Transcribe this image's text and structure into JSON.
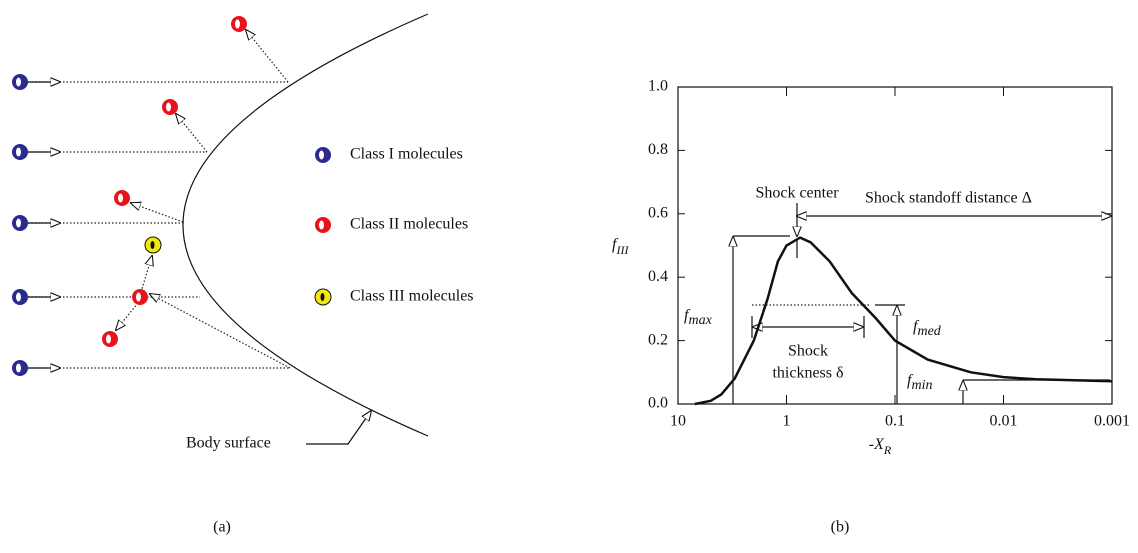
{
  "panel_a": {
    "legend": [
      "Class I molecules",
      "Class II molecules",
      "Class III molecules"
    ],
    "surface_label": "Body surface",
    "caption": "(a)"
  },
  "panel_b": {
    "caption": "(b)"
  },
  "chart_data": {
    "type": "line",
    "x": [
      7,
      5,
      4,
      3,
      2,
      1.5,
      1.2,
      1,
      0.75,
      0.6,
      0.4,
      0.25,
      0.15,
      0.1,
      0.05,
      0.02,
      0.01,
      0.005,
      0.001
    ],
    "values": [
      0,
      0.01,
      0.03,
      0.08,
      0.2,
      0.33,
      0.45,
      0.5,
      0.525,
      0.51,
      0.45,
      0.35,
      0.27,
      0.2,
      0.14,
      0.1,
      0.085,
      0.078,
      0.072
    ],
    "color": "#111111",
    "xlim": [
      10,
      0.001
    ],
    "xticks": [
      10,
      1,
      0.1,
      0.01,
      0.001
    ],
    "xscale": "log",
    "ylim": [
      0,
      1
    ],
    "yticks": [
      {
        "value": 0,
        "label": "0.0"
      },
      0.2,
      0.4,
      0.6,
      0.8,
      {
        "value": 1,
        "label": "1.0"
      }
    ],
    "ylabel": {
      "base": "f",
      "sub": "III"
    },
    "xlabel": {
      "base": "-X",
      "sub": "R"
    },
    "annotations": {
      "shock_center": "Shock center",
      "standoff": "Shock standoff distance Δ",
      "fmax": {
        "base": "f",
        "sub": "max"
      },
      "fmed": {
        "base": "f",
        "sub": "med"
      },
      "fmin": {
        "base": "f",
        "sub": "min"
      },
      "thickness": [
        "Shock",
        "thickness δ"
      ]
    }
  }
}
